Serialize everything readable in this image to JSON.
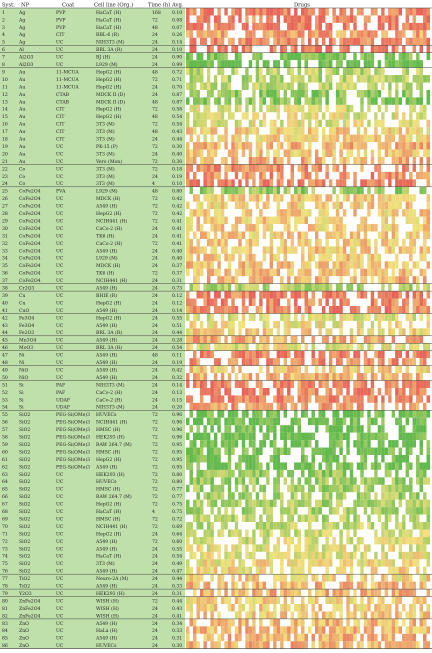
{
  "chart_data": {
    "type": "heatmap",
    "header": {
      "syst": "Syst.",
      "np": "NP",
      "coat": "Coat",
      "cell": "Cell line (Org.)",
      "time": "Time (h)",
      "avg": "Avg.",
      "drugs": "Drugs"
    },
    "rows": [
      {
        "syst": "1",
        "np": "Ag",
        "coat": "PVP",
        "cell": "HaCaT (H)",
        "time": "168",
        "avg": "0.10"
      },
      {
        "syst": "2",
        "np": "Ag",
        "coat": "PVP",
        "cell": "HaCaT (H)",
        "time": "72",
        "avg": "0.08"
      },
      {
        "syst": "3",
        "np": "Ag",
        "coat": "PVP",
        "cell": "HaCaT (H)",
        "time": "48",
        "avg": "0.07"
      },
      {
        "syst": "4",
        "np": "Ag",
        "coat": "CIT",
        "cell": "RBL-6 (R)",
        "time": "24",
        "avg": "0.26"
      },
      {
        "syst": "5",
        "np": "Ag",
        "coat": "UC",
        "cell": "NIH3T3 (M)",
        "time": "24",
        "avg": "0.14"
      },
      {
        "syst": "6",
        "np": "Al",
        "coat": "UC",
        "cell": "BRL 3A (R)",
        "time": "24",
        "avg": "0.10"
      },
      {
        "syst": "7",
        "np": "Al2O3",
        "coat": "UC",
        "cell": "BJ (H)",
        "time": "24",
        "avg": "0.90"
      },
      {
        "syst": "8",
        "np": "Al2O3",
        "coat": "UC",
        "cell": "L929 (M)",
        "time": "24",
        "avg": "0.99"
      },
      {
        "syst": "9",
        "np": "Au",
        "coat": "11-MCUA",
        "cell": "HepG2 (H)",
        "time": "48",
        "avg": "0.72"
      },
      {
        "syst": "10",
        "np": "Au",
        "coat": "11-MCUA",
        "cell": "HepG2 (H)",
        "time": "72",
        "avg": "0.71"
      },
      {
        "syst": "11",
        "np": "Au",
        "coat": "11-MCUA",
        "cell": "HepG2 (H)",
        "time": "24",
        "avg": "0.70"
      },
      {
        "syst": "12",
        "np": "Au",
        "coat": "CTAB",
        "cell": "MDCK II (D)",
        "time": "24",
        "avg": "0.87"
      },
      {
        "syst": "13",
        "np": "Au",
        "coat": "CTAB",
        "cell": "MDCK II (D)",
        "time": "48",
        "avg": "0.87"
      },
      {
        "syst": "14",
        "np": "Au",
        "coat": "CIT",
        "cell": "HepG2 (H)",
        "time": "72",
        "avg": "0.58"
      },
      {
        "syst": "15",
        "np": "Au",
        "coat": "CIT",
        "cell": "HepG2 (H)",
        "time": "48",
        "avg": "0.54"
      },
      {
        "syst": "16",
        "np": "Au",
        "coat": "CIT",
        "cell": "3T3 (M)",
        "time": "72",
        "avg": "0.54"
      },
      {
        "syst": "17",
        "np": "Au",
        "coat": "CIT",
        "cell": "3T3 (M)",
        "time": "48",
        "avg": "0.43"
      },
      {
        "syst": "18",
        "np": "Au",
        "coat": "CIT",
        "cell": "3T3 (M)",
        "time": "24",
        "avg": "0.44"
      },
      {
        "syst": "19",
        "np": "Au",
        "coat": "UC",
        "cell": "PK-15 (P)",
        "time": "72",
        "avg": "0.30"
      },
      {
        "syst": "20",
        "np": "Au",
        "coat": "UC",
        "cell": "3T3 (M)",
        "time": "24",
        "avg": "0.40"
      },
      {
        "syst": "21",
        "np": "Au",
        "coat": "UC",
        "cell": "Vero (Mon)",
        "time": "72",
        "avg": "0.30"
      },
      {
        "syst": "22",
        "np": "Co",
        "coat": "UC",
        "cell": "3T3 (M)",
        "time": "72",
        "avg": "0.18"
      },
      {
        "syst": "23",
        "np": "Co",
        "coat": "UC",
        "cell": "3T3 (M)",
        "time": "24",
        "avg": "0.19"
      },
      {
        "syst": "24",
        "np": "Co",
        "coat": "UC",
        "cell": "3T3 (M)",
        "time": "4",
        "avg": "0.10"
      },
      {
        "syst": "25",
        "np": "CoFe2O4",
        "coat": "PVA",
        "cell": "L929 (M)",
        "time": "48",
        "avg": "0.80"
      },
      {
        "syst": "26",
        "np": "CoFe2O4",
        "coat": "UC",
        "cell": "MDCK (H)",
        "time": "72",
        "avg": "0.42"
      },
      {
        "syst": "27",
        "np": "CoFe2O4",
        "coat": "UC",
        "cell": "A549 (H)",
        "time": "72",
        "avg": "0.42"
      },
      {
        "syst": "28",
        "np": "CoFe2O4",
        "coat": "UC",
        "cell": "HepG2 (H)",
        "time": "72",
        "avg": "0.42"
      },
      {
        "syst": "29",
        "np": "CoFe2O4",
        "coat": "UC",
        "cell": "NCIH441 (H)",
        "time": "72",
        "avg": "0.41"
      },
      {
        "syst": "30",
        "np": "CoFe2O4",
        "coat": "UC",
        "cell": "CaCo-2 (H)",
        "time": "24",
        "avg": "0.41"
      },
      {
        "syst": "31",
        "np": "CoFe2O4",
        "coat": "UC",
        "cell": "TK6 (H)",
        "time": "24",
        "avg": "0.41"
      },
      {
        "syst": "32",
        "np": "CoFe2O4",
        "coat": "UC",
        "cell": "CaCo-2 (H)",
        "time": "72",
        "avg": "0.41"
      },
      {
        "syst": "33",
        "np": "CoFe2O4",
        "coat": "UC",
        "cell": "A549 (H)",
        "time": "24",
        "avg": "0.40"
      },
      {
        "syst": "34",
        "np": "CoFe2O4",
        "coat": "UC",
        "cell": "L929 (M)",
        "time": "24",
        "avg": "0.40"
      },
      {
        "syst": "35",
        "np": "CoFe2O4",
        "coat": "UC",
        "cell": "MDCK (H)",
        "time": "24",
        "avg": "0.37"
      },
      {
        "syst": "36",
        "np": "CoFe2O4",
        "coat": "UC",
        "cell": "TK6 (H)",
        "time": "72",
        "avg": "0.37"
      },
      {
        "syst": "37",
        "np": "CoFe2O4",
        "coat": "UC",
        "cell": "NCIH441 (H)",
        "time": "24",
        "avg": "0.31"
      },
      {
        "syst": "38",
        "np": "Cr2O3",
        "coat": "UC",
        "cell": "A549 (H)",
        "time": "24",
        "avg": "0.73"
      },
      {
        "syst": "39",
        "np": "Cu",
        "coat": "UC",
        "cell": "BHIE (R)",
        "time": "24",
        "avg": "0.12"
      },
      {
        "syst": "40",
        "np": "Cu",
        "coat": "UC",
        "cell": "HepG2 (H)",
        "time": "24",
        "avg": "0.12"
      },
      {
        "syst": "41",
        "np": "CuO",
        "coat": "UC",
        "cell": "A549 (H)",
        "time": "24",
        "avg": "0.14"
      },
      {
        "syst": "42",
        "np": "Fe3O4",
        "coat": "UC",
        "cell": "HepG2 (H)",
        "time": "24",
        "avg": "0.55"
      },
      {
        "syst": "43",
        "np": "Fe3O4",
        "coat": "UC",
        "cell": "A549 (H)",
        "time": "24",
        "avg": "0.51"
      },
      {
        "syst": "44",
        "np": "Fe2O3",
        "coat": "UC",
        "cell": "BRL 3A (R)",
        "time": "24",
        "avg": "0.44"
      },
      {
        "syst": "45",
        "np": "Mn3O4",
        "coat": "UC",
        "cell": "A549 (H)",
        "time": "24",
        "avg": "0.28"
      },
      {
        "syst": "46",
        "np": "MoO3",
        "coat": "UC",
        "cell": "BRL 3A (R)",
        "time": "24",
        "avg": "0.54"
      },
      {
        "syst": "47",
        "np": "Ni",
        "coat": "UC",
        "cell": "A549 (H)",
        "time": "48",
        "avg": "0.11"
      },
      {
        "syst": "48",
        "np": "Ni",
        "coat": "UC",
        "cell": "A549 (H)",
        "time": "24",
        "avg": "0.19"
      },
      {
        "syst": "49",
        "np": "NiO",
        "coat": "UC",
        "cell": "A549 (H)",
        "time": "24",
        "avg": "0.42"
      },
      {
        "syst": "50",
        "np": "NiO",
        "coat": "UC",
        "cell": "A549 (H)",
        "time": "24",
        "avg": "0.32"
      },
      {
        "syst": "51",
        "np": "Si",
        "coat": "PAF",
        "cell": "NIH3T3 (M)",
        "time": "24",
        "avg": "0.14"
      },
      {
        "syst": "52",
        "np": "Si",
        "coat": "PAF",
        "cell": "CaCo-2 (H)",
        "time": "24",
        "avg": "0.13"
      },
      {
        "syst": "53",
        "np": "Si",
        "coat": "UDAF",
        "cell": "CaCo-2 (H)",
        "time": "24",
        "avg": "0.15"
      },
      {
        "syst": "54",
        "np": "Si",
        "coat": "UDAF",
        "cell": "NIH3T3 (M)",
        "time": "24",
        "avg": "0.20"
      },
      {
        "syst": "55",
        "np": "SiO2",
        "coat": "PEG-Si(OMe)3",
        "cell": "HUVECs",
        "time": "72",
        "avg": "0.96"
      },
      {
        "syst": "56",
        "np": "SiO2",
        "coat": "PEG-Si(OMe)3",
        "cell": "NCIH441 (H)",
        "time": "72",
        "avg": "0.96"
      },
      {
        "syst": "57",
        "np": "SiO2",
        "coat": "PEG-Si(OMe)3",
        "cell": "HMSC (H)",
        "time": "72",
        "avg": "0.96"
      },
      {
        "syst": "58",
        "np": "SiO2",
        "coat": "PEG-Si(OMe)3",
        "cell": "HEK293 (H)",
        "time": "72",
        "avg": "0.96"
      },
      {
        "syst": "59",
        "np": "SiO2",
        "coat": "PEG-Si(OMe)3",
        "cell": "RAW 264.7 (M)",
        "time": "72",
        "avg": "0.95"
      },
      {
        "syst": "60",
        "np": "SiO2",
        "coat": "PEG-Si(OMe)3",
        "cell": "HMSC (H)",
        "time": "72",
        "avg": "0.95"
      },
      {
        "syst": "61",
        "np": "SiO2",
        "coat": "PEG-Si(OMe)3",
        "cell": "HepG2 (H)",
        "time": "72",
        "avg": "0.95"
      },
      {
        "syst": "62",
        "np": "SiO2",
        "coat": "PEG-Si(OMe)3",
        "cell": "A549 (H)",
        "time": "72",
        "avg": "0.95"
      },
      {
        "syst": "63",
        "np": "SiO2",
        "coat": "UC",
        "cell": "HEK293 (H)",
        "time": "72",
        "avg": "0.80"
      },
      {
        "syst": "64",
        "np": "SiO2",
        "coat": "UC",
        "cell": "HUVECs",
        "time": "72",
        "avg": "0.80"
      },
      {
        "syst": "65",
        "np": "SiO2",
        "coat": "UC",
        "cell": "HMSC (H)",
        "time": "72",
        "avg": "0.77"
      },
      {
        "syst": "66",
        "np": "SiO2",
        "coat": "UC",
        "cell": "RAW 264.7 (M)",
        "time": "72",
        "avg": "0.77"
      },
      {
        "syst": "67",
        "np": "SiO2",
        "coat": "UC",
        "cell": "HepG2 (H)",
        "time": "72",
        "avg": "0.75"
      },
      {
        "syst": "68",
        "np": "SiO2",
        "coat": "UC",
        "cell": "HaCaT (H)",
        "time": "4",
        "avg": "0.75"
      },
      {
        "syst": "69",
        "np": "SiO2",
        "coat": "UC",
        "cell": "HMSC (H)",
        "time": "72",
        "avg": "0.72"
      },
      {
        "syst": "70",
        "np": "SiO2",
        "coat": "UC",
        "cell": "NCIH441 (H)",
        "time": "72",
        "avg": "0.69"
      },
      {
        "syst": "71",
        "np": "SiO2",
        "coat": "UC",
        "cell": "HepG2 (H)",
        "time": "24",
        "avg": "0.64"
      },
      {
        "syst": "72",
        "np": "SiO2",
        "coat": "UC",
        "cell": "A549 (H)",
        "time": "72",
        "avg": "0.60"
      },
      {
        "syst": "73",
        "np": "SiO2",
        "coat": "UC",
        "cell": "A549 (H)",
        "time": "24",
        "avg": "0.55"
      },
      {
        "syst": "74",
        "np": "SiO2",
        "coat": "UC",
        "cell": "HaCaT (H)",
        "time": "24",
        "avg": "0.54"
      },
      {
        "syst": "75",
        "np": "SiO2",
        "coat": "UC",
        "cell": "3T3 (M)",
        "time": "24",
        "avg": "0.49"
      },
      {
        "syst": "76",
        "np": "SiO2",
        "coat": "UC",
        "cell": "A549 (H)",
        "time": "24",
        "avg": "0.47"
      },
      {
        "syst": "77",
        "np": "TiO2",
        "coat": "UC",
        "cell": "Neuro-2A (M)",
        "time": "24",
        "avg": "0.44"
      },
      {
        "syst": "78",
        "np": "TiO2",
        "coat": "UC",
        "cell": "A549 (H)",
        "time": "24",
        "avg": "0.33"
      },
      {
        "syst": "79",
        "np": "Y2O3",
        "coat": "UC",
        "cell": "HEK293 (H)",
        "time": "24",
        "avg": "0.31"
      },
      {
        "syst": "80",
        "np": "ZnFe2O4",
        "coat": "UC",
        "cell": "WISH (H)",
        "time": "72",
        "avg": "0.44"
      },
      {
        "syst": "81",
        "np": "ZnFe2O4",
        "coat": "UC",
        "cell": "WISH (H)",
        "time": "24",
        "avg": "0.43"
      },
      {
        "syst": "82",
        "np": "ZnFe2O4",
        "coat": "UC",
        "cell": "WISH (H)",
        "time": "24",
        "avg": "0.41"
      },
      {
        "syst": "83",
        "np": "ZnO",
        "coat": "UC",
        "cell": "A549 (H)",
        "time": "24",
        "avg": "0.34"
      },
      {
        "syst": "84",
        "np": "ZnO",
        "coat": "UC",
        "cell": "HaLa (H)",
        "time": "24",
        "avg": "0.33"
      },
      {
        "syst": "85",
        "np": "ZnO",
        "coat": "UC",
        "cell": "A549 (H)",
        "time": "24",
        "avg": "0.31"
      },
      {
        "syst": "86",
        "np": "ZnO",
        "coat": "UC",
        "cell": "HUVECs",
        "time": "24",
        "avg": "0.30"
      }
    ],
    "group_ends": [
      5,
      6,
      8,
      21,
      24,
      37,
      38,
      41,
      44,
      45,
      46,
      48,
      50,
      54,
      76,
      78,
      79,
      82
    ],
    "drug_columns": 70,
    "colors": {
      "low": "#e8645a",
      "mid": "#f2e27e",
      "high": "#62b94e",
      "missing": "#ffffff",
      "label_bg": "#bfe0aa",
      "rule": "#444444"
    }
  }
}
